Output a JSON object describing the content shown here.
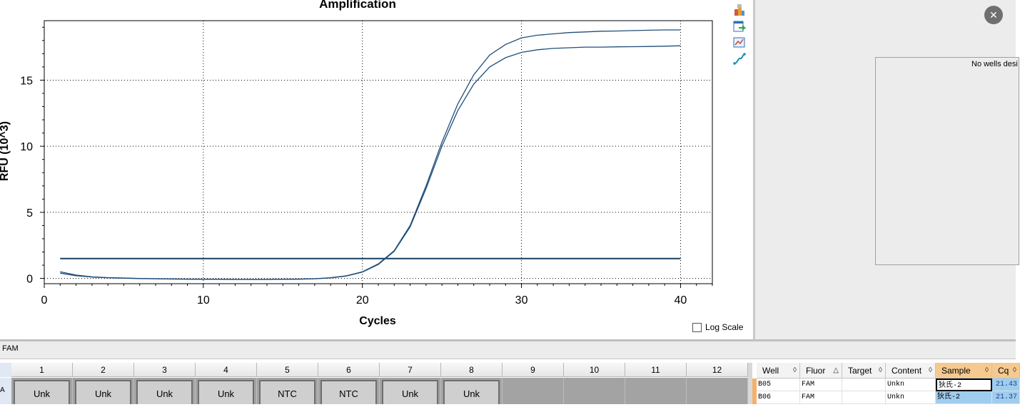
{
  "chart_data": {
    "type": "line",
    "title": "Amplification",
    "xlabel": "Cycles",
    "ylabel": "RFU (10^3)",
    "xlim": [
      0,
      42
    ],
    "ylim": [
      -0.4,
      19.5
    ],
    "x_ticks": [
      0,
      10,
      20,
      30,
      40
    ],
    "y_ticks": [
      0,
      5,
      10,
      15
    ],
    "grid": true,
    "log_scale": false,
    "threshold": 1.5,
    "series": [
      {
        "x": [
          1,
          2,
          3,
          4,
          5,
          6,
          7,
          8,
          9,
          10,
          11,
          12,
          13,
          14,
          15,
          16,
          17,
          18,
          19,
          20,
          21,
          22,
          23,
          24,
          25,
          26,
          27,
          28,
          29,
          30,
          31,
          32,
          33,
          34,
          35,
          36,
          37,
          38,
          39,
          40
        ],
        "values": [
          0.5,
          0.25,
          0.12,
          0.06,
          0.03,
          0.0,
          -0.02,
          -0.04,
          -0.05,
          -0.06,
          -0.06,
          -0.07,
          -0.07,
          -0.07,
          -0.06,
          -0.05,
          -0.02,
          0.05,
          0.2,
          0.5,
          1.1,
          2.1,
          4.0,
          7.0,
          10.3,
          13.2,
          15.4,
          16.9,
          17.7,
          18.2,
          18.4,
          18.5,
          18.6,
          18.65,
          18.7,
          18.72,
          18.75,
          18.78,
          18.8,
          18.8
        ]
      },
      {
        "x": [
          1,
          2,
          3,
          4,
          5,
          6,
          7,
          8,
          9,
          10,
          11,
          12,
          13,
          14,
          15,
          16,
          17,
          18,
          19,
          20,
          21,
          22,
          23,
          24,
          25,
          26,
          27,
          28,
          29,
          30,
          31,
          32,
          33,
          34,
          35,
          36,
          37,
          38,
          39,
          40
        ],
        "values": [
          0.4,
          0.2,
          0.1,
          0.05,
          0.02,
          -0.01,
          -0.03,
          -0.05,
          -0.06,
          -0.07,
          -0.07,
          -0.08,
          -0.08,
          -0.08,
          -0.07,
          -0.06,
          -0.03,
          0.04,
          0.18,
          0.48,
          1.05,
          2.05,
          3.9,
          6.8,
          10.0,
          12.7,
          14.7,
          16.0,
          16.7,
          17.1,
          17.3,
          17.4,
          17.45,
          17.5,
          17.5,
          17.52,
          17.53,
          17.55,
          17.57,
          17.6
        ]
      }
    ],
    "colors": {
      "line": "#1f4e79",
      "threshold": "#173d5e",
      "grid": "#000000"
    }
  },
  "log_scale_label": "Log Scale",
  "wells_panel": {
    "message": "No wells desi"
  },
  "fluor_tab": "FAM",
  "plate": {
    "columns": [
      "1",
      "2",
      "3",
      "4",
      "5",
      "6",
      "7",
      "8",
      "9",
      "10",
      "11",
      "12"
    ],
    "row_head": "A",
    "cells": [
      "Unk",
      "Unk",
      "Unk",
      "Unk",
      "NTC",
      "NTC",
      "Unk",
      "Unk",
      "",
      "",
      "",
      ""
    ]
  },
  "table": {
    "headers": [
      "Well",
      "Fluor",
      "Target",
      "Content",
      "Sample",
      "Cq"
    ],
    "rows": [
      {
        "well": "B05",
        "fluor": "FAM",
        "target": "",
        "content": "Unkn",
        "sample": "狄氏-2",
        "cq": "21.43"
      },
      {
        "well": "B06",
        "fluor": "FAM",
        "target": "",
        "content": "Unkn",
        "sample": "狄氏-2",
        "cq": "21.37"
      }
    ]
  },
  "icons": {
    "toolbar": [
      "chart-copy-icon",
      "chart-export-icon",
      "chart-zoom-icon",
      "chart-series-icon"
    ],
    "close": "close-icon"
  }
}
